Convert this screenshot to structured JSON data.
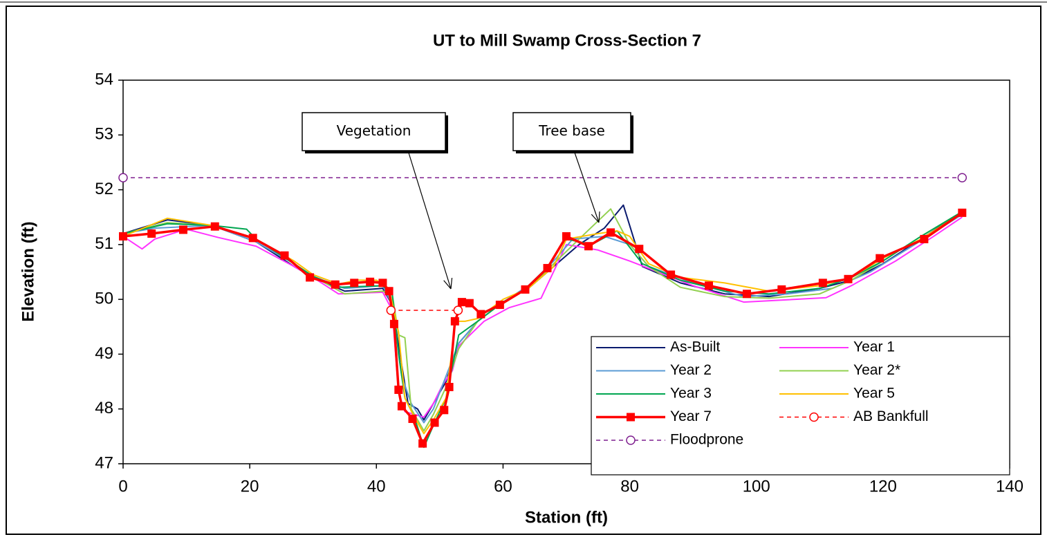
{
  "chart_data": {
    "type": "line",
    "title": "UT to Mill Swamp Cross-Section 7",
    "x_label": "Station (ft)",
    "y_label": "Elevation (ft)",
    "xlim": [
      0,
      140
    ],
    "xticks": [
      0,
      20,
      40,
      60,
      80,
      100,
      120,
      140
    ],
    "ylim": [
      47,
      54
    ],
    "yticks": [
      47,
      48,
      49,
      50,
      51,
      52,
      53,
      54
    ],
    "annotations": [
      "Vegetation",
      "Tree base"
    ],
    "series": [
      {
        "name": "As-Built",
        "color": "#0a1a6e",
        "width": 2,
        "x": [
          0,
          7,
          14,
          21,
          27,
          30,
          35,
          41,
          42.5,
          44,
          45,
          46.5,
          47.5,
          49,
          51,
          53,
          56,
          60,
          64,
          68,
          72,
          76,
          79,
          82,
          88,
          95,
          102,
          110,
          115,
          120,
          126,
          132.5
        ],
        "values": [
          51.2,
          51.45,
          51.35,
          51.05,
          50.6,
          50.4,
          50.15,
          50.2,
          49.9,
          48.8,
          48.1,
          48.0,
          47.8,
          48.1,
          48.5,
          49.2,
          49.6,
          49.95,
          50.2,
          50.6,
          51.0,
          51.3,
          51.72,
          50.6,
          50.3,
          50.1,
          50.05,
          50.2,
          50.35,
          50.65,
          51.1,
          51.6
        ]
      },
      {
        "name": "Year 1",
        "color": "#ff33ff",
        "width": 2,
        "x": [
          0,
          3,
          5,
          10,
          15,
          21,
          27,
          30,
          34,
          41,
          42.5,
          43.5,
          44.5,
          46,
          47.5,
          49,
          50.5,
          52,
          53,
          57,
          61,
          66,
          70,
          75,
          80,
          90,
          98,
          111,
          115,
          122,
          128,
          132.5
        ],
        "values": [
          51.15,
          50.92,
          51.1,
          51.28,
          51.13,
          50.97,
          50.6,
          50.4,
          50.1,
          50.13,
          49.8,
          48.3,
          47.95,
          47.9,
          47.85,
          48.1,
          48.45,
          48.7,
          49.15,
          49.6,
          49.85,
          50.02,
          51.0,
          50.9,
          50.7,
          50.25,
          49.95,
          50.03,
          50.25,
          50.7,
          51.15,
          51.5
        ]
      },
      {
        "name": "Year 2",
        "color": "#5b9bd5",
        "width": 2,
        "x": [
          0,
          5,
          14,
          21,
          27,
          30,
          35,
          41,
          42.5,
          44,
          45.5,
          47.5,
          49,
          51,
          53,
          56,
          60,
          64,
          68,
          71,
          76,
          80,
          83,
          90,
          98,
          105,
          112,
          118,
          125,
          132.5
        ],
        "values": [
          51.2,
          51.3,
          51.35,
          51.05,
          50.65,
          50.42,
          50.2,
          50.25,
          49.9,
          48.6,
          48.1,
          47.75,
          48.0,
          48.6,
          49.2,
          49.6,
          49.95,
          50.25,
          50.7,
          51.1,
          51.15,
          51.0,
          50.6,
          50.3,
          50.05,
          50.1,
          50.2,
          50.5,
          51.0,
          51.55
        ]
      },
      {
        "name": "Year 2*",
        "color": "#92d050",
        "width": 2,
        "x": [
          0,
          7,
          14,
          21,
          27,
          30,
          35,
          41,
          42.5,
          43.5,
          44.5,
          45.5,
          47.5,
          49,
          51,
          53,
          56,
          60,
          64,
          68,
          72,
          77,
          80,
          83,
          88,
          95,
          102,
          110,
          115,
          120,
          126,
          132.5
        ],
        "values": [
          51.2,
          51.4,
          51.35,
          51.1,
          50.65,
          50.42,
          50.1,
          50.15,
          50.1,
          49.35,
          49.3,
          48.0,
          47.6,
          47.9,
          48.4,
          49.1,
          49.6,
          49.95,
          50.2,
          50.65,
          51.1,
          51.65,
          51.0,
          50.6,
          50.22,
          50.05,
          50.02,
          50.1,
          50.35,
          50.7,
          51.15,
          51.6
        ]
      },
      {
        "name": "Year 3",
        "color": "#00a550",
        "width": 2,
        "x": [
          0,
          7,
          14,
          19.5,
          21,
          27,
          30,
          34,
          41,
          42.5,
          43.5,
          44.5,
          46,
          47.5,
          49,
          51,
          53,
          56,
          60,
          64,
          68,
          70,
          74,
          78,
          82,
          88,
          95,
          102,
          110,
          115,
          120,
          126,
          132.5
        ],
        "values": [
          51.2,
          51.38,
          51.35,
          51.28,
          51.1,
          50.65,
          50.42,
          50.22,
          50.25,
          50.1,
          49.0,
          48.2,
          47.85,
          47.3,
          47.7,
          48.2,
          49.35,
          49.6,
          49.95,
          50.2,
          50.6,
          51.1,
          51.0,
          51.25,
          50.65,
          50.35,
          50.15,
          50.1,
          50.2,
          50.4,
          50.7,
          51.15,
          51.6
        ]
      },
      {
        "name": "Year 5",
        "color": "#ffc000",
        "width": 2,
        "x": [
          0,
          7,
          14,
          21,
          27,
          30,
          34,
          37,
          40,
          42,
          43.5,
          44.5,
          46,
          47.5,
          49,
          51,
          52.5,
          54,
          56,
          60,
          64,
          68,
          70,
          75,
          78,
          80,
          83,
          88,
          95,
          102,
          110,
          115,
          120,
          126,
          132.5
        ],
        "values": [
          51.15,
          51.48,
          51.35,
          51.1,
          50.7,
          50.45,
          50.28,
          50.35,
          50.35,
          50.2,
          49.4,
          48.2,
          47.85,
          47.55,
          47.8,
          48.2,
          49.6,
          49.6,
          49.65,
          50.0,
          50.2,
          50.6,
          51.1,
          51.2,
          51.25,
          51.15,
          50.65,
          50.4,
          50.3,
          50.15,
          50.25,
          50.4,
          50.75,
          51.1,
          51.58
        ]
      },
      {
        "name": "Year 7",
        "color": "#ff0000",
        "width": 3.5,
        "marker": "square",
        "x": [
          0,
          4.5,
          9.5,
          14.5,
          20.5,
          25.5,
          29.5,
          33.5,
          36.5,
          39,
          41,
          42,
          42.8,
          43.5,
          44,
          45.7,
          47.3,
          49.2,
          50.7,
          51.5,
          52.4,
          53.5,
          54.7,
          56.5,
          59.5,
          63.5,
          67,
          70,
          73.5,
          77,
          81.5,
          86.5,
          92.5,
          98.5,
          104,
          110.5,
          114.5,
          119.5,
          126.5,
          132.5
        ],
        "values": [
          51.15,
          51.2,
          51.27,
          51.33,
          51.12,
          50.8,
          50.4,
          50.27,
          50.3,
          50.32,
          50.3,
          50.15,
          49.55,
          48.35,
          48.05,
          47.82,
          47.37,
          47.75,
          47.98,
          48.4,
          49.6,
          49.95,
          49.93,
          49.73,
          49.9,
          50.18,
          50.57,
          51.15,
          50.97,
          51.22,
          50.92,
          50.45,
          50.25,
          50.1,
          50.18,
          50.3,
          50.37,
          50.75,
          51.1,
          51.58
        ]
      },
      {
        "name": "AB Bankfull",
        "color": "#ff0000",
        "width": 1.5,
        "dash": true,
        "marker": "open-circle",
        "x": [
          42.3,
          52.9
        ],
        "values": [
          49.8,
          49.8
        ]
      },
      {
        "name": "Floodprone",
        "color": "#7f1f8f",
        "width": 1.5,
        "dash": true,
        "marker": "open-circle",
        "x": [
          0,
          132.5
        ],
        "values": [
          52.22,
          52.22
        ]
      }
    ]
  }
}
